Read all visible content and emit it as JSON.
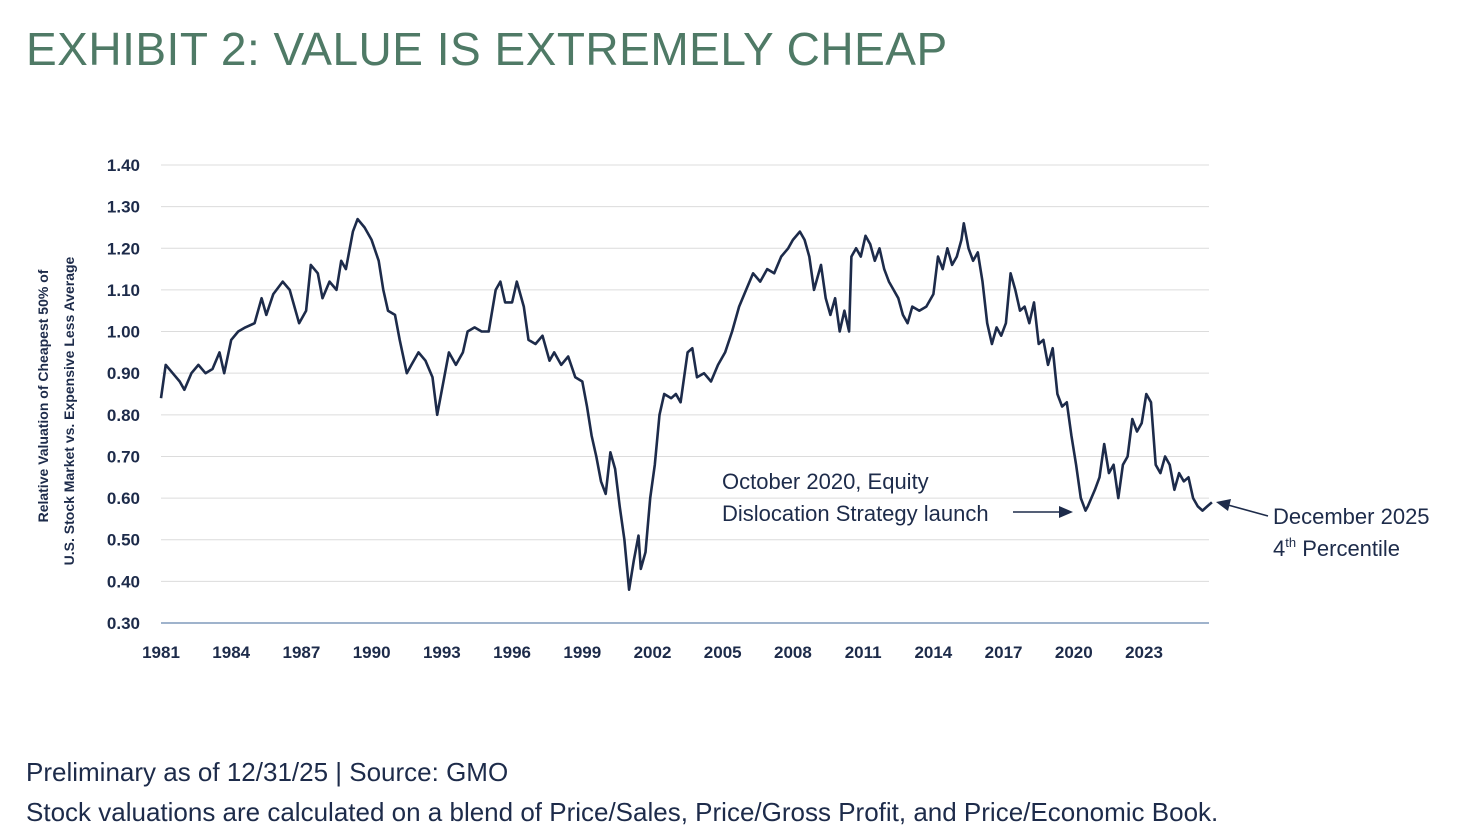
{
  "title": "EXHIBIT 2: VALUE IS EXTREMELY CHEAP",
  "footer": {
    "line1": "Preliminary as of 12/31/25 | Source: GMO",
    "line2": "Stock valuations are calculated on a blend of Price/Sales, Price/Gross Profit, and Price/Economic Book."
  },
  "colors": {
    "title": "#4f7a66",
    "series": "#1d2b4a",
    "grid": "#dcdcdc",
    "axis": "#9fb3cc",
    "text": "#1d2b4a"
  },
  "chart_data": {
    "type": "line",
    "title": "",
    "xlabel": "",
    "ylabel_lines": [
      "Relative Valuation of Cheapest 50% of",
      "U.S. Stock Market vs. Expensive Less Average"
    ],
    "xlim": [
      1981,
      2026
    ],
    "ylim": [
      0.3,
      1.4
    ],
    "x_ticks": [
      "1981",
      "1984",
      "1987",
      "1990",
      "1993",
      "1996",
      "1999",
      "2002",
      "2005",
      "2008",
      "2011",
      "2014",
      "2017",
      "2020",
      "2023"
    ],
    "y_ticks": [
      "1.40",
      "1.30",
      "1.20",
      "1.10",
      "1.00",
      "0.90",
      "0.80",
      "0.70",
      "0.60",
      "0.50",
      "0.40",
      "0.30"
    ],
    "grid": true,
    "legend": "none",
    "series": [
      {
        "points": [
          [
            1981.0,
            0.84
          ],
          [
            1981.2,
            0.92
          ],
          [
            1981.5,
            0.9
          ],
          [
            1981.8,
            0.88
          ],
          [
            1982.0,
            0.86
          ],
          [
            1982.3,
            0.9
          ],
          [
            1982.6,
            0.92
          ],
          [
            1982.9,
            0.9
          ],
          [
            1983.2,
            0.91
          ],
          [
            1983.5,
            0.95
          ],
          [
            1983.7,
            0.9
          ],
          [
            1984.0,
            0.98
          ],
          [
            1984.3,
            1.0
          ],
          [
            1984.6,
            1.01
          ],
          [
            1985.0,
            1.02
          ],
          [
            1985.3,
            1.08
          ],
          [
            1985.5,
            1.04
          ],
          [
            1985.8,
            1.09
          ],
          [
            1986.2,
            1.12
          ],
          [
            1986.5,
            1.1
          ],
          [
            1986.9,
            1.02
          ],
          [
            1987.2,
            1.05
          ],
          [
            1987.4,
            1.16
          ],
          [
            1987.7,
            1.14
          ],
          [
            1987.9,
            1.08
          ],
          [
            1988.2,
            1.12
          ],
          [
            1988.5,
            1.1
          ],
          [
            1988.7,
            1.17
          ],
          [
            1988.9,
            1.15
          ],
          [
            1989.2,
            1.24
          ],
          [
            1989.4,
            1.27
          ],
          [
            1989.7,
            1.25
          ],
          [
            1990.0,
            1.22
          ],
          [
            1990.3,
            1.17
          ],
          [
            1990.5,
            1.1
          ],
          [
            1990.7,
            1.05
          ],
          [
            1991.0,
            1.04
          ],
          [
            1991.2,
            0.98
          ],
          [
            1991.5,
            0.9
          ],
          [
            1991.7,
            0.92
          ],
          [
            1992.0,
            0.95
          ],
          [
            1992.3,
            0.93
          ],
          [
            1992.6,
            0.89
          ],
          [
            1992.8,
            0.8
          ],
          [
            1993.0,
            0.86
          ],
          [
            1993.3,
            0.95
          ],
          [
            1993.6,
            0.92
          ],
          [
            1993.9,
            0.95
          ],
          [
            1994.1,
            1.0
          ],
          [
            1994.4,
            1.01
          ],
          [
            1994.7,
            1.0
          ],
          [
            1995.0,
            1.0
          ],
          [
            1995.3,
            1.1
          ],
          [
            1995.5,
            1.12
          ],
          [
            1995.7,
            1.07
          ],
          [
            1996.0,
            1.07
          ],
          [
            1996.2,
            1.12
          ],
          [
            1996.5,
            1.06
          ],
          [
            1996.7,
            0.98
          ],
          [
            1997.0,
            0.97
          ],
          [
            1997.3,
            0.99
          ],
          [
            1997.6,
            0.93
          ],
          [
            1997.8,
            0.95
          ],
          [
            1998.1,
            0.92
          ],
          [
            1998.4,
            0.94
          ],
          [
            1998.7,
            0.89
          ],
          [
            1999.0,
            0.88
          ],
          [
            1999.2,
            0.82
          ],
          [
            1999.4,
            0.75
          ],
          [
            1999.6,
            0.7
          ],
          [
            1999.8,
            0.64
          ],
          [
            2000.0,
            0.61
          ],
          [
            2000.2,
            0.71
          ],
          [
            2000.4,
            0.67
          ],
          [
            2000.6,
            0.58
          ],
          [
            2000.8,
            0.5
          ],
          [
            2001.0,
            0.38
          ],
          [
            2001.2,
            0.45
          ],
          [
            2001.4,
            0.51
          ],
          [
            2001.5,
            0.43
          ],
          [
            2001.7,
            0.47
          ],
          [
            2001.9,
            0.6
          ],
          [
            2002.1,
            0.68
          ],
          [
            2002.3,
            0.8
          ],
          [
            2002.5,
            0.85
          ],
          [
            2002.8,
            0.84
          ],
          [
            2003.0,
            0.85
          ],
          [
            2003.2,
            0.83
          ],
          [
            2003.5,
            0.95
          ],
          [
            2003.7,
            0.96
          ],
          [
            2003.9,
            0.89
          ],
          [
            2004.2,
            0.9
          ],
          [
            2004.5,
            0.88
          ],
          [
            2004.8,
            0.92
          ],
          [
            2005.1,
            0.95
          ],
          [
            2005.4,
            1.0
          ],
          [
            2005.7,
            1.06
          ],
          [
            2006.0,
            1.1
          ],
          [
            2006.3,
            1.14
          ],
          [
            2006.6,
            1.12
          ],
          [
            2006.9,
            1.15
          ],
          [
            2007.2,
            1.14
          ],
          [
            2007.5,
            1.18
          ],
          [
            2007.8,
            1.2
          ],
          [
            2008.0,
            1.22
          ],
          [
            2008.3,
            1.24
          ],
          [
            2008.5,
            1.22
          ],
          [
            2008.7,
            1.18
          ],
          [
            2008.9,
            1.1
          ],
          [
            2009.2,
            1.16
          ],
          [
            2009.4,
            1.08
          ],
          [
            2009.6,
            1.04
          ],
          [
            2009.8,
            1.08
          ],
          [
            2010.0,
            1.0
          ],
          [
            2010.2,
            1.05
          ],
          [
            2010.4,
            1.0
          ],
          [
            2010.5,
            1.18
          ],
          [
            2010.7,
            1.2
          ],
          [
            2010.9,
            1.18
          ],
          [
            2011.1,
            1.23
          ],
          [
            2011.3,
            1.21
          ],
          [
            2011.5,
            1.17
          ],
          [
            2011.7,
            1.2
          ],
          [
            2011.9,
            1.15
          ],
          [
            2012.1,
            1.12
          ],
          [
            2012.3,
            1.1
          ],
          [
            2012.5,
            1.08
          ],
          [
            2012.7,
            1.04
          ],
          [
            2012.9,
            1.02
          ],
          [
            2013.1,
            1.06
          ],
          [
            2013.4,
            1.05
          ],
          [
            2013.7,
            1.06
          ],
          [
            2014.0,
            1.09
          ],
          [
            2014.2,
            1.18
          ],
          [
            2014.4,
            1.15
          ],
          [
            2014.6,
            1.2
          ],
          [
            2014.8,
            1.16
          ],
          [
            2015.0,
            1.18
          ],
          [
            2015.2,
            1.22
          ],
          [
            2015.3,
            1.26
          ],
          [
            2015.5,
            1.2
          ],
          [
            2015.7,
            1.17
          ],
          [
            2015.9,
            1.19
          ],
          [
            2016.1,
            1.12
          ],
          [
            2016.3,
            1.02
          ],
          [
            2016.5,
            0.97
          ],
          [
            2016.7,
            1.01
          ],
          [
            2016.9,
            0.99
          ],
          [
            2017.1,
            1.02
          ],
          [
            2017.3,
            1.14
          ],
          [
            2017.5,
            1.1
          ],
          [
            2017.7,
            1.05
          ],
          [
            2017.9,
            1.06
          ],
          [
            2018.1,
            1.02
          ],
          [
            2018.3,
            1.07
          ],
          [
            2018.5,
            0.97
          ],
          [
            2018.7,
            0.98
          ],
          [
            2018.9,
            0.92
          ],
          [
            2019.1,
            0.96
          ],
          [
            2019.3,
            0.85
          ],
          [
            2019.5,
            0.82
          ],
          [
            2019.7,
            0.83
          ],
          [
            2019.9,
            0.75
          ],
          [
            2020.1,
            0.68
          ],
          [
            2020.3,
            0.6
          ],
          [
            2020.5,
            0.57
          ],
          [
            2020.6,
            0.58
          ],
          [
            2020.9,
            0.62
          ],
          [
            2021.1,
            0.65
          ],
          [
            2021.3,
            0.73
          ],
          [
            2021.5,
            0.66
          ],
          [
            2021.7,
            0.68
          ],
          [
            2021.9,
            0.6
          ],
          [
            2022.1,
            0.68
          ],
          [
            2022.3,
            0.7
          ],
          [
            2022.5,
            0.79
          ],
          [
            2022.7,
            0.76
          ],
          [
            2022.9,
            0.78
          ],
          [
            2023.1,
            0.85
          ],
          [
            2023.3,
            0.83
          ],
          [
            2023.5,
            0.68
          ],
          [
            2023.7,
            0.66
          ],
          [
            2023.9,
            0.7
          ],
          [
            2024.1,
            0.68
          ],
          [
            2024.3,
            0.62
          ],
          [
            2024.5,
            0.66
          ],
          [
            2024.7,
            0.64
          ],
          [
            2024.9,
            0.65
          ],
          [
            2025.1,
            0.6
          ],
          [
            2025.3,
            0.58
          ],
          [
            2025.5,
            0.57
          ],
          [
            2025.7,
            0.58
          ],
          [
            2025.9,
            0.59
          ]
        ]
      }
    ],
    "annotations": [
      {
        "lines": [
          "October 2020, Equity",
          "Dislocation Strategy launch"
        ],
        "target_x": 2020.6,
        "target_y": 0.58
      },
      {
        "lines": [
          "December 2025",
          "4",
          "th",
          " Percentile"
        ],
        "target_x": 2025.9,
        "target_y": 0.59
      }
    ]
  }
}
